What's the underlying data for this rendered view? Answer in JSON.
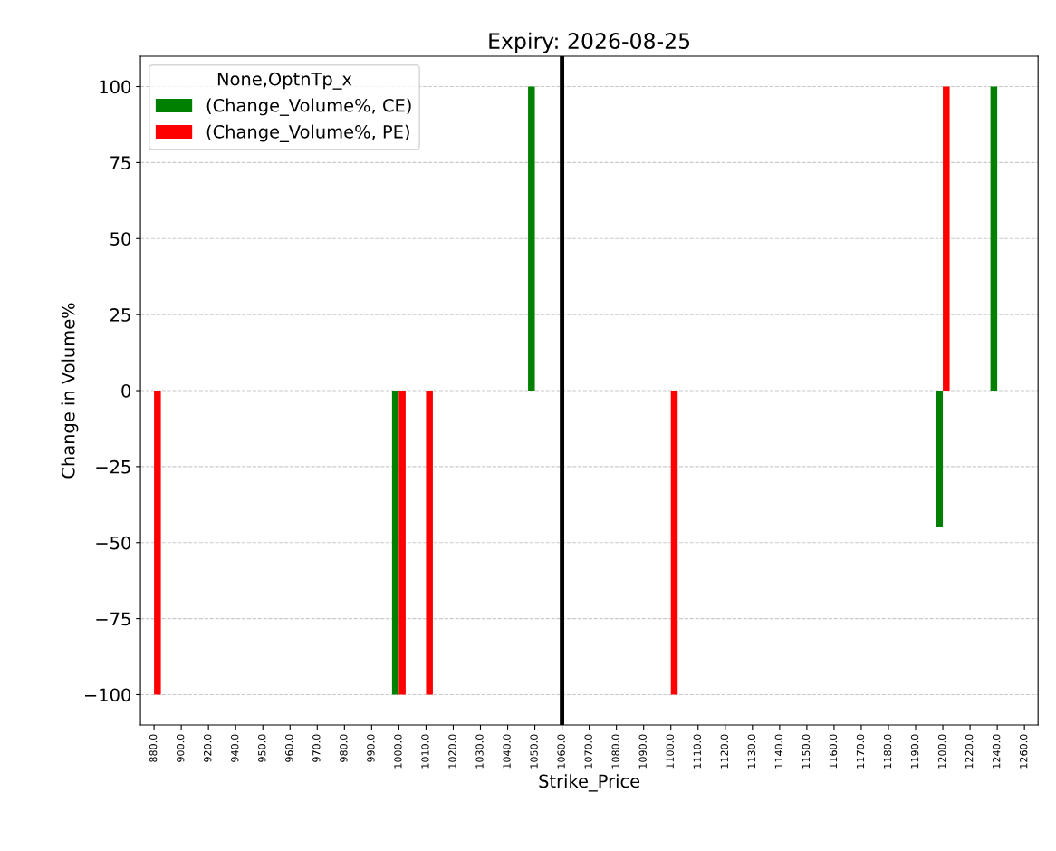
{
  "chart_data": {
    "type": "bar",
    "title": "Expiry: 2026-08-25",
    "xlabel": "Strike_Price",
    "ylabel": "Change in Volume%",
    "legend_title": "None,OptnTp_x",
    "categories": [
      "880.0",
      "900.0",
      "920.0",
      "940.0",
      "950.0",
      "960.0",
      "970.0",
      "980.0",
      "990.0",
      "1000.0",
      "1010.0",
      "1020.0",
      "1030.0",
      "1040.0",
      "1050.0",
      "1060.0",
      "1070.0",
      "1080.0",
      "1090.0",
      "1100.0",
      "1110.0",
      "1120.0",
      "1130.0",
      "1140.0",
      "1150.0",
      "1160.0",
      "1170.0",
      "1180.0",
      "1190.0",
      "1200.0",
      "1220.0",
      "1240.0",
      "1260.0"
    ],
    "series": [
      {
        "name": "(Change_Volume%, CE)",
        "color": "#008000",
        "values": [
          null,
          null,
          null,
          null,
          null,
          null,
          null,
          null,
          null,
          -100,
          null,
          null,
          null,
          null,
          100,
          null,
          null,
          null,
          null,
          null,
          null,
          null,
          null,
          null,
          null,
          null,
          null,
          null,
          null,
          -45,
          null,
          100,
          null
        ]
      },
      {
        "name": "(Change_Volume%, PE)",
        "color": "#ff0000",
        "values": [
          -100,
          null,
          null,
          null,
          null,
          null,
          null,
          null,
          null,
          -100,
          -100,
          null,
          null,
          null,
          null,
          null,
          null,
          null,
          null,
          -100,
          null,
          null,
          null,
          null,
          null,
          null,
          null,
          null,
          null,
          100,
          null,
          null,
          null
        ]
      }
    ],
    "ylim": [
      -110,
      110
    ],
    "yticks": [
      {
        "value": -100,
        "label": "−100"
      },
      {
        "value": -75,
        "label": "−75"
      },
      {
        "value": -50,
        "label": "−50"
      },
      {
        "value": -25,
        "label": "−25"
      },
      0,
      25,
      50,
      75,
      100
    ],
    "ref_lines": [
      {
        "axis": "x",
        "value": "1060.0",
        "color": "#000000",
        "line_style": "solid"
      }
    ],
    "grid": "y",
    "legend": "top left"
  }
}
